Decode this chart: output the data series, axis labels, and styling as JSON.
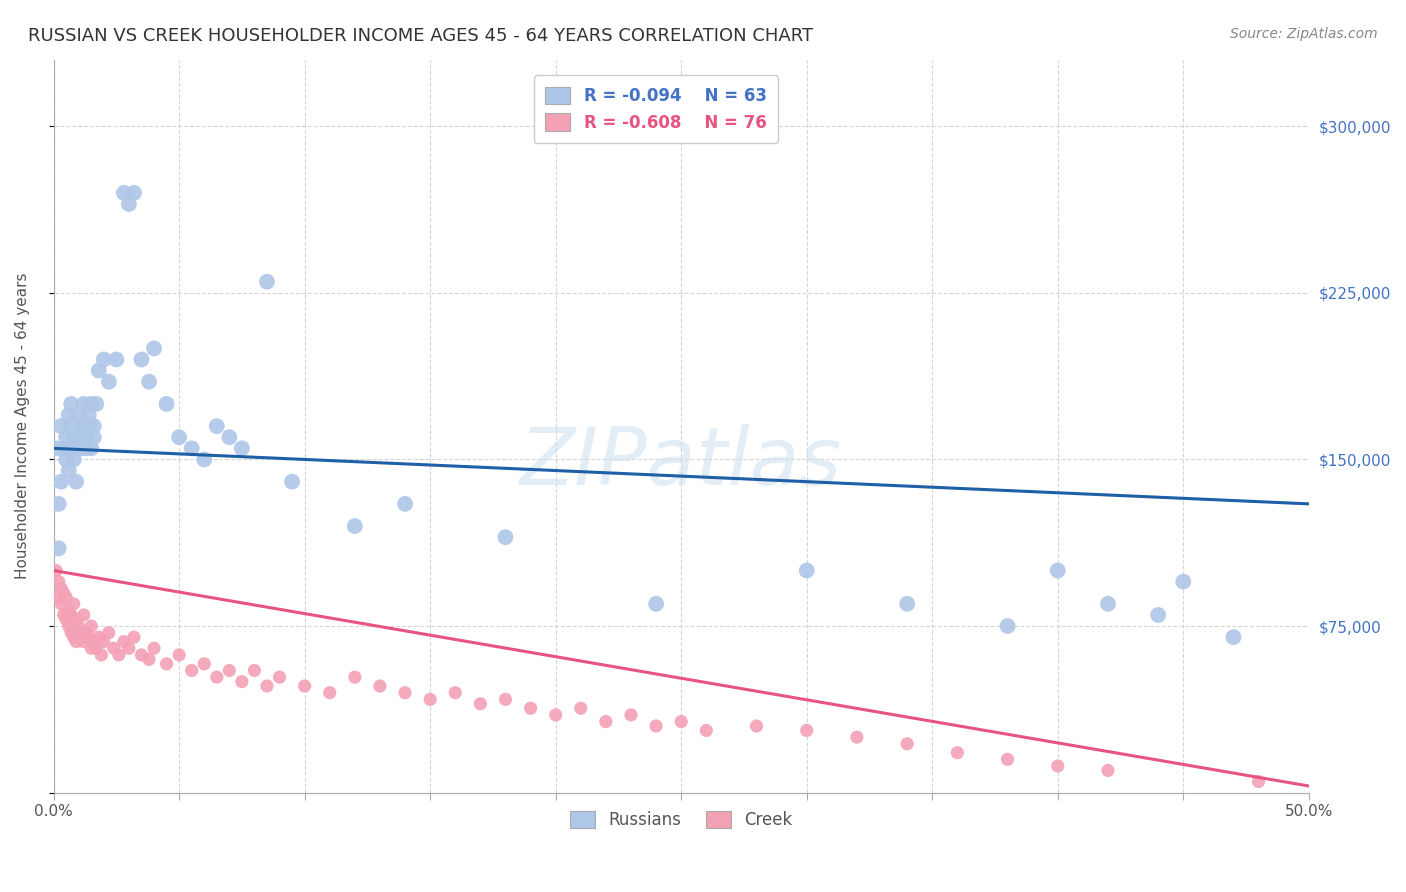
{
  "title": "RUSSIAN VS CREEK HOUSEHOLDER INCOME AGES 45 - 64 YEARS CORRELATION CHART",
  "source": "Source: ZipAtlas.com",
  "ylabel": "Householder Income Ages 45 - 64 years",
  "xlim": [
    0.0,
    0.5
  ],
  "ylim": [
    0,
    330000
  ],
  "xtick_positions": [
    0.0,
    0.05,
    0.1,
    0.15,
    0.2,
    0.25,
    0.3,
    0.35,
    0.4,
    0.45,
    0.5
  ],
  "xticklabels": [
    "0.0%",
    "",
    "",
    "",
    "",
    "",
    "",
    "",
    "",
    "",
    "50.0%"
  ],
  "ytick_positions": [
    0,
    75000,
    150000,
    225000,
    300000
  ],
  "ytick_labels": [
    "",
    "$75,000",
    "$150,000",
    "$225,000",
    "$300,000"
  ],
  "background_color": "#ffffff",
  "grid_color": "#cccccc",
  "watermark": "ZIPatlas",
  "legend_R1": "-0.094",
  "legend_N1": "63",
  "legend_R2": "-0.608",
  "legend_N2": "76",
  "series1_name": "Russians",
  "series2_name": "Creek",
  "series1_color": "#aec6e8",
  "series2_color": "#f4a0b5",
  "series1_line_color": "#1f5fa6",
  "series2_line_color": "#e75480",
  "russians_x": [
    0.001,
    0.002,
    0.002,
    0.003,
    0.003,
    0.004,
    0.005,
    0.005,
    0.006,
    0.006,
    0.007,
    0.007,
    0.007,
    0.008,
    0.008,
    0.009,
    0.009,
    0.01,
    0.01,
    0.011,
    0.011,
    0.012,
    0.012,
    0.013,
    0.013,
    0.014,
    0.014,
    0.015,
    0.015,
    0.016,
    0.016,
    0.017,
    0.018,
    0.02,
    0.022,
    0.025,
    0.028,
    0.03,
    0.032,
    0.035,
    0.038,
    0.04,
    0.045,
    0.05,
    0.055,
    0.06,
    0.065,
    0.07,
    0.075,
    0.085,
    0.095,
    0.12,
    0.14,
    0.18,
    0.24,
    0.3,
    0.34,
    0.38,
    0.4,
    0.42,
    0.44,
    0.45,
    0.47
  ],
  "russians_y": [
    155000,
    130000,
    110000,
    140000,
    165000,
    155000,
    150000,
    160000,
    145000,
    170000,
    155000,
    165000,
    175000,
    150000,
    160000,
    140000,
    155000,
    170000,
    160000,
    165000,
    155000,
    175000,
    165000,
    160000,
    155000,
    170000,
    165000,
    155000,
    175000,
    160000,
    165000,
    175000,
    190000,
    195000,
    185000,
    195000,
    270000,
    265000,
    270000,
    195000,
    185000,
    200000,
    175000,
    160000,
    155000,
    150000,
    165000,
    160000,
    155000,
    230000,
    140000,
    120000,
    130000,
    115000,
    85000,
    100000,
    85000,
    75000,
    100000,
    85000,
    80000,
    95000,
    70000
  ],
  "creek_x": [
    0.001,
    0.002,
    0.002,
    0.003,
    0.003,
    0.004,
    0.004,
    0.005,
    0.005,
    0.006,
    0.006,
    0.007,
    0.007,
    0.008,
    0.008,
    0.009,
    0.009,
    0.01,
    0.01,
    0.011,
    0.012,
    0.012,
    0.013,
    0.014,
    0.015,
    0.015,
    0.016,
    0.017,
    0.018,
    0.019,
    0.02,
    0.022,
    0.024,
    0.026,
    0.028,
    0.03,
    0.032,
    0.035,
    0.038,
    0.04,
    0.045,
    0.05,
    0.055,
    0.06,
    0.065,
    0.07,
    0.075,
    0.08,
    0.085,
    0.09,
    0.1,
    0.11,
    0.12,
    0.13,
    0.14,
    0.15,
    0.16,
    0.17,
    0.18,
    0.19,
    0.2,
    0.21,
    0.22,
    0.23,
    0.24,
    0.25,
    0.26,
    0.28,
    0.3,
    0.32,
    0.34,
    0.36,
    0.38,
    0.4,
    0.42,
    0.48
  ],
  "creek_y": [
    100000,
    95000,
    88000,
    92000,
    85000,
    90000,
    80000,
    88000,
    78000,
    82000,
    75000,
    80000,
    72000,
    85000,
    70000,
    78000,
    68000,
    75000,
    72000,
    70000,
    80000,
    68000,
    72000,
    70000,
    65000,
    75000,
    68000,
    65000,
    70000,
    62000,
    68000,
    72000,
    65000,
    62000,
    68000,
    65000,
    70000,
    62000,
    60000,
    65000,
    58000,
    62000,
    55000,
    58000,
    52000,
    55000,
    50000,
    55000,
    48000,
    52000,
    48000,
    45000,
    52000,
    48000,
    45000,
    42000,
    45000,
    40000,
    42000,
    38000,
    35000,
    38000,
    32000,
    35000,
    30000,
    32000,
    28000,
    30000,
    28000,
    25000,
    22000,
    18000,
    15000,
    12000,
    10000,
    5000
  ]
}
